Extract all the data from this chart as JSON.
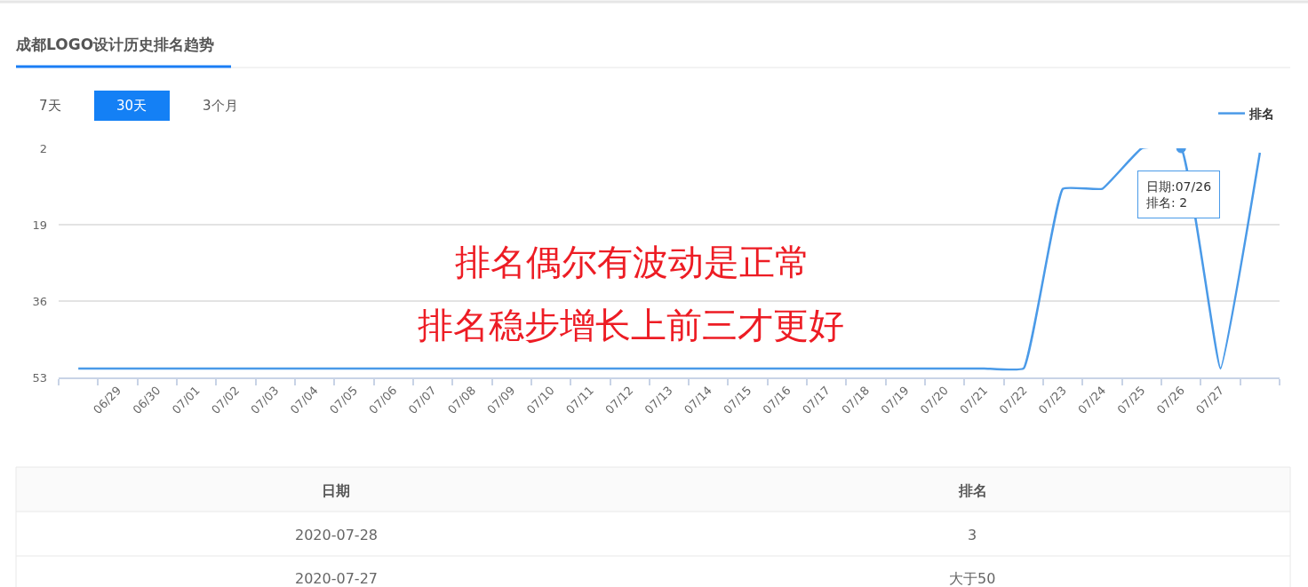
{
  "chart_data": {
    "type": "line",
    "title": "成都LOGO设计历史排名趋势",
    "categories": [
      null,
      "06/29",
      "06/30",
      "07/01",
      "07/02",
      "07/03",
      "07/04",
      "07/05",
      "07/06",
      "07/07",
      "07/08",
      "07/09",
      "07/10",
      "07/11",
      "07/12",
      "07/13",
      "07/14",
      "07/15",
      "07/16",
      "07/17",
      "07/18",
      "07/19",
      "07/20",
      "07/21",
      "07/22",
      "07/23",
      "07/24",
      "07/25",
      "07/26",
      "07/27",
      null
    ],
    "series": [
      {
        "name": "排名",
        "color": "#4a9ae8",
        "values": [
          51,
          51,
          51,
          51,
          51,
          51,
          51,
          51,
          51,
          51,
          51,
          51,
          51,
          51,
          51,
          51,
          51,
          51,
          51,
          51,
          51,
          51,
          51,
          51,
          51,
          11,
          11,
          2,
          2,
          51,
          3
        ]
      }
    ],
    "ylim": [
      53,
      2
    ],
    "yticks": [
      2,
      19,
      36,
      53
    ],
    "grid": "y",
    "legend": "top right",
    "annotations": [
      "7天",
      "30天",
      "3个月",
      "排名偶尔有波动是正常",
      "排名稳步增长上前三才更好",
      {
        "text": "日期:07/26\n排名: 2",
        "x": "07/26",
        "y": 2
      },
      "日期",
      "排名",
      "2020-07-28",
      "3",
      "2020-07-27",
      "大于50"
    ]
  }
}
